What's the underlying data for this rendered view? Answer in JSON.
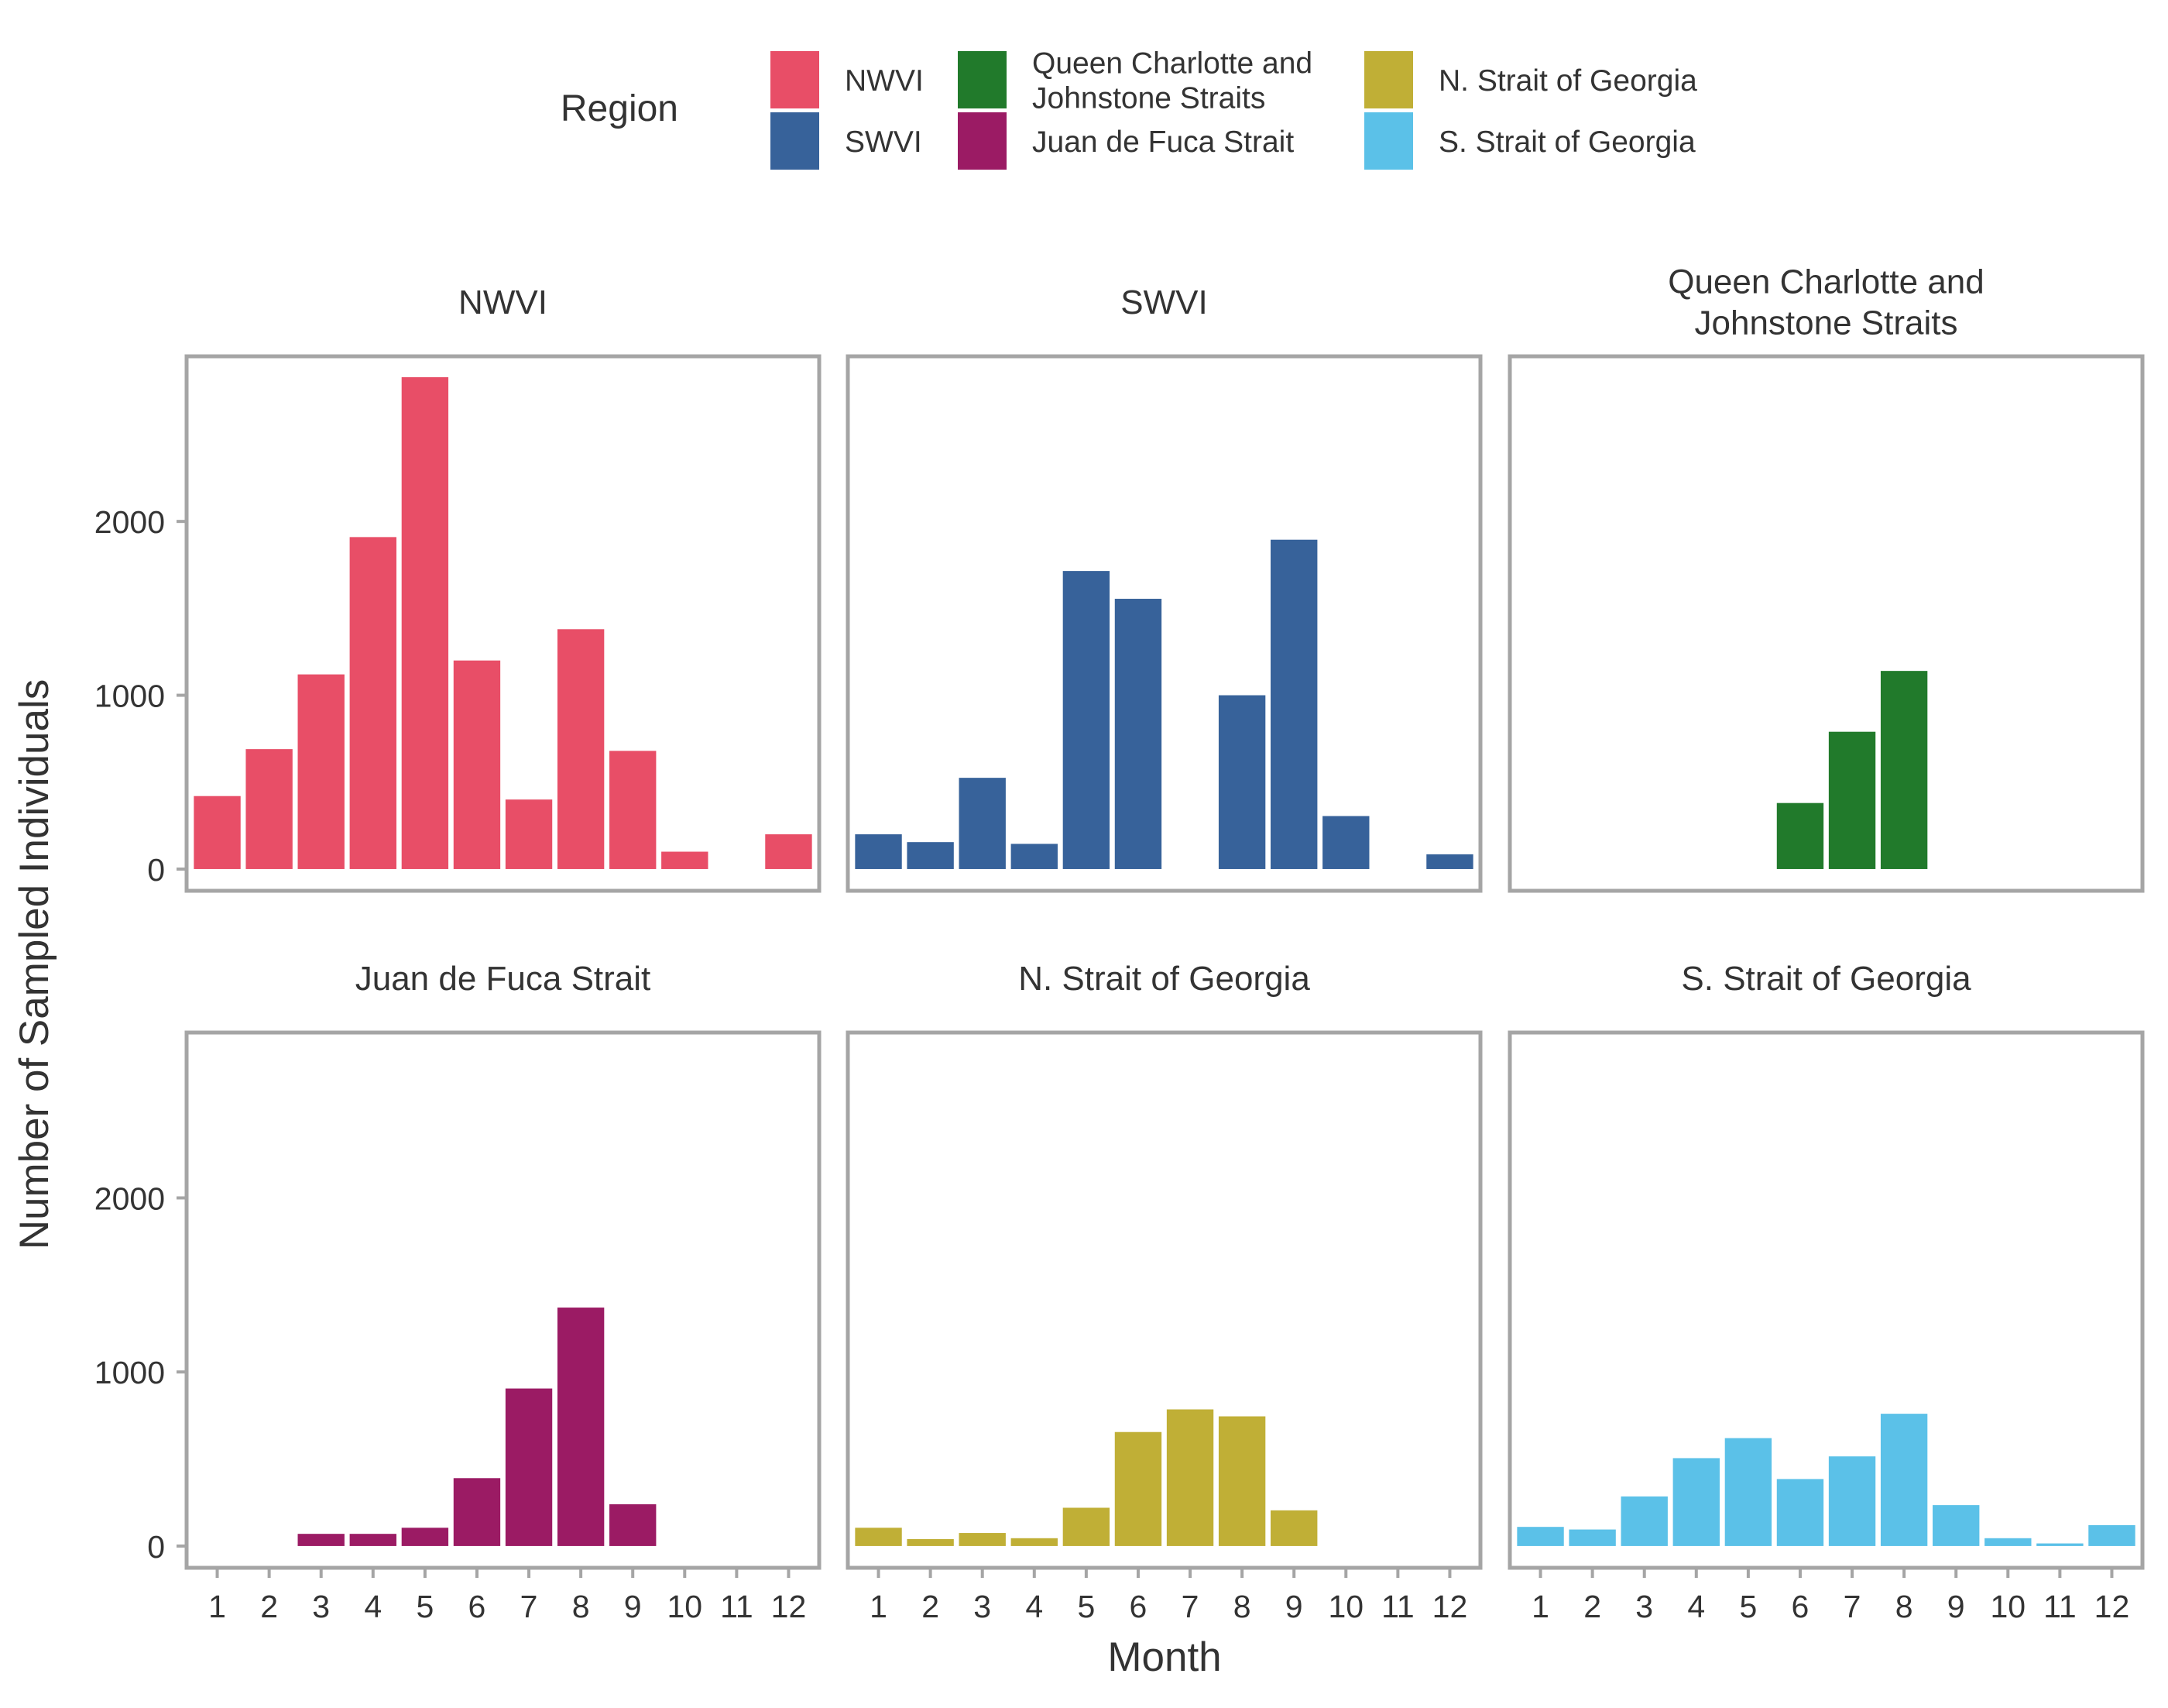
{
  "chart_data": {
    "type": "bar",
    "facet_by": "Region",
    "categories": [
      "1",
      "2",
      "3",
      "4",
      "5",
      "6",
      "7",
      "8",
      "9",
      "10",
      "11",
      "12"
    ],
    "xlabel": "Month",
    "ylabel": "Number of Sampled Individuals",
    "ylim": [
      -125,
      2950
    ],
    "yticks": [
      0,
      1000,
      2000
    ],
    "legend": {
      "title": "Region",
      "placement": "top"
    },
    "series": [
      {
        "name": "NWVI",
        "color": "#E84E67",
        "values": [
          420,
          690,
          1120,
          1910,
          2830,
          1200,
          400,
          1380,
          680,
          100,
          0,
          200
        ]
      },
      {
        "name": "SWVI",
        "color": "#37629A",
        "values": [
          200,
          155,
          525,
          145,
          1715,
          1555,
          0,
          1000,
          1895,
          305,
          0,
          85
        ]
      },
      {
        "name": "Queen Charlotte and Johnstone Straits",
        "color": "#217A2B",
        "values": [
          0,
          0,
          0,
          0,
          0,
          380,
          790,
          1140,
          0,
          0,
          0,
          0
        ]
      },
      {
        "name": "Juan de Fuca Strait",
        "color": "#9B1B64",
        "values": [
          0,
          0,
          70,
          70,
          105,
          390,
          905,
          1370,
          240,
          0,
          0,
          0
        ]
      },
      {
        "name": "N. Strait of Georgia",
        "color": "#C0AF36",
        "values": [
          105,
          40,
          75,
          45,
          220,
          655,
          785,
          745,
          205,
          0,
          0,
          0
        ]
      },
      {
        "name": "S. Strait of Georgia",
        "color": "#5BC1E8",
        "values": [
          110,
          95,
          285,
          505,
          620,
          385,
          515,
          760,
          235,
          45,
          15,
          120
        ]
      }
    ],
    "facets": [
      {
        "title": [
          "NWVI"
        ]
      },
      {
        "title": [
          "SWVI"
        ]
      },
      {
        "title": [
          "Queen Charlotte and",
          "Johnstone Straits"
        ]
      },
      {
        "title": [
          "Juan de Fuca Strait"
        ]
      },
      {
        "title": [
          "N. Strait of Georgia"
        ]
      },
      {
        "title": [
          "S. Strait of Georgia"
        ]
      }
    ],
    "legend_entries": [
      {
        "lines": [
          "NWVI"
        ]
      },
      {
        "lines": [
          "SWVI"
        ]
      },
      {
        "lines": [
          "Queen Charlotte and",
          "Johnstone Straits"
        ]
      },
      {
        "lines": [
          "Juan de Fuca Strait"
        ]
      },
      {
        "lines": [
          "N. Strait of Georgia"
        ]
      },
      {
        "lines": [
          "S. Strait of Georgia"
        ]
      }
    ]
  }
}
